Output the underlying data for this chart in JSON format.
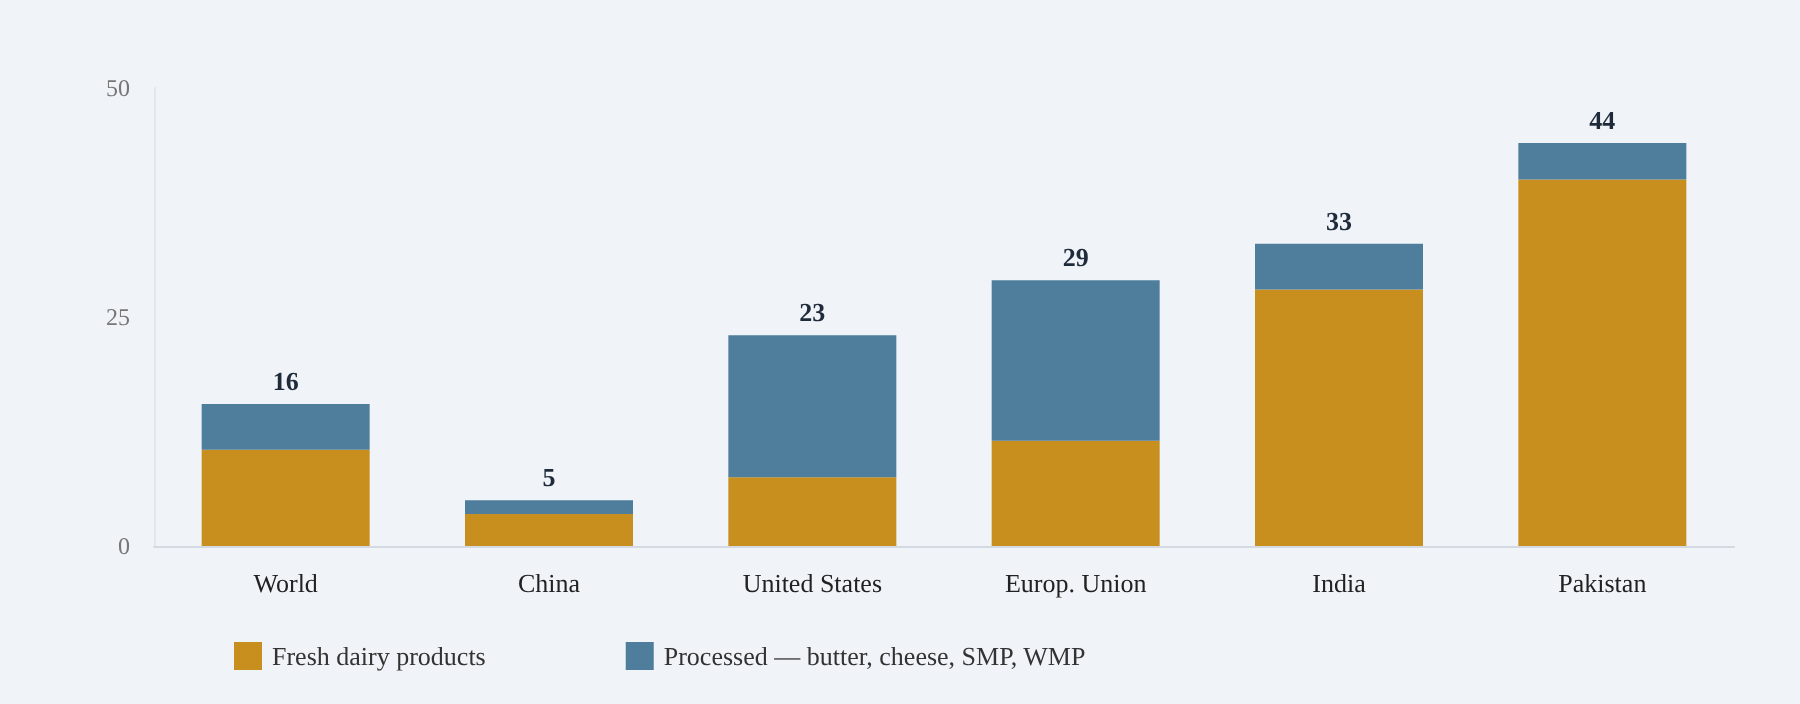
{
  "chart_data": {
    "type": "bar",
    "stacked": true,
    "categories": [
      "World",
      "China",
      "United States",
      "Europ. Union",
      "India",
      "Pakistan"
    ],
    "series": [
      {
        "name": "Fresh dairy products",
        "color": "#c88f1e",
        "values": [
          10.5,
          3.5,
          7.5,
          11.5,
          28,
          40
        ]
      },
      {
        "name": "Processed — butter, cheese, SMP, WMP",
        "color": "#4e7e9c",
        "values": [
          5,
          1.5,
          15.5,
          17.5,
          5,
          4
        ]
      }
    ],
    "totals": [
      "16",
      "5",
      "23",
      "29",
      "33",
      "44"
    ],
    "ylim": [
      0,
      50
    ],
    "yticks": [
      0,
      25,
      50
    ],
    "grid": false,
    "legend": "bottom left"
  }
}
